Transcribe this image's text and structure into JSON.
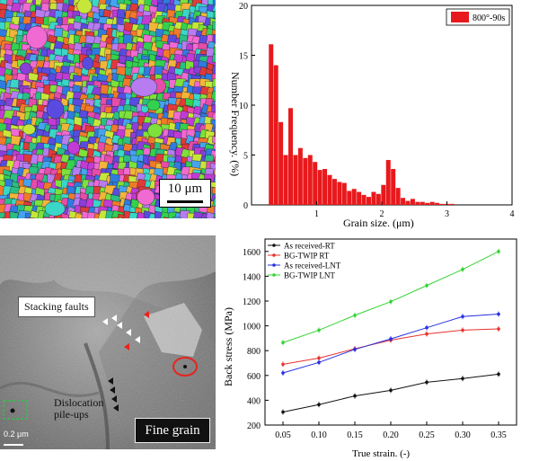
{
  "ebsd_map": {
    "scale_label": "10 μm",
    "palette": [
      "#2f7be0",
      "#8a3fd8",
      "#c23bd4",
      "#e64ca8",
      "#33d14f",
      "#7ee03b",
      "#c7e63a",
      "#f2b53a",
      "#f07a2a",
      "#e03a3a",
      "#3ad6c8",
      "#46a3f0",
      "#b67cf0",
      "#f06ad2",
      "#5a4be0",
      "#2bbf83"
    ]
  },
  "histogram": {
    "chart_data": {
      "type": "bar",
      "title": "",
      "legend": "800°-90s",
      "xlabel": "Grain size. (μm)",
      "ylabel": "Number Frequency. (%)",
      "xlim": [
        0,
        4
      ],
      "ylim": [
        0,
        20
      ],
      "xticks": [
        "1",
        "2",
        "3",
        "4"
      ],
      "yticks": [
        "0",
        "5",
        "10",
        "15",
        "20"
      ],
      "bin_width": 0.075,
      "bins": [
        {
          "x": 0.3,
          "value": 16.1
        },
        {
          "x": 0.375,
          "value": 14.0
        },
        {
          "x": 0.45,
          "value": 8.3
        },
        {
          "x": 0.525,
          "value": 5.0
        },
        {
          "x": 0.6,
          "value": 9.7
        },
        {
          "x": 0.675,
          "value": 5.0
        },
        {
          "x": 0.75,
          "value": 5.7
        },
        {
          "x": 0.825,
          "value": 4.7
        },
        {
          "x": 0.9,
          "value": 5.0
        },
        {
          "x": 0.975,
          "value": 4.3
        },
        {
          "x": 1.05,
          "value": 3.5
        },
        {
          "x": 1.125,
          "value": 3.6
        },
        {
          "x": 1.2,
          "value": 3.0
        },
        {
          "x": 1.275,
          "value": 2.6
        },
        {
          "x": 1.35,
          "value": 2.3
        },
        {
          "x": 1.425,
          "value": 2.2
        },
        {
          "x": 1.5,
          "value": 1.4
        },
        {
          "x": 1.575,
          "value": 1.6
        },
        {
          "x": 1.65,
          "value": 1.3
        },
        {
          "x": 1.725,
          "value": 1.0
        },
        {
          "x": 1.8,
          "value": 0.8
        },
        {
          "x": 1.875,
          "value": 1.3
        },
        {
          "x": 1.95,
          "value": 1.1
        },
        {
          "x": 2.025,
          "value": 2.0
        },
        {
          "x": 2.1,
          "value": 4.5
        },
        {
          "x": 2.175,
          "value": 3.6
        },
        {
          "x": 2.25,
          "value": 1.7
        },
        {
          "x": 2.325,
          "value": 0.7
        },
        {
          "x": 2.4,
          "value": 0.4
        },
        {
          "x": 2.475,
          "value": 0.6
        },
        {
          "x": 2.55,
          "value": 0.3
        },
        {
          "x": 2.625,
          "value": 0.3
        },
        {
          "x": 2.7,
          "value": 0.2
        },
        {
          "x": 2.775,
          "value": 0.3
        },
        {
          "x": 2.85,
          "value": 0.2
        },
        {
          "x": 2.925,
          "value": 0.1
        },
        {
          "x": 3.0,
          "value": 0.1
        },
        {
          "x": 3.075,
          "value": 0.1
        }
      ]
    },
    "color": "#e8191c"
  },
  "tem_image": {
    "stacking_faults_label": "Stacking faults",
    "dislocation_label": "Dislocation\npile-ups",
    "fine_grain_label": "Fine grain",
    "scale_label": "0.2 μm"
  },
  "back_stress": {
    "chart_data": {
      "type": "line",
      "xlabel": "True strain. (-)",
      "ylabel": "Back stress  (MPa)",
      "x": [
        0.05,
        0.1,
        0.15,
        0.2,
        0.25,
        0.3,
        0.35
      ],
      "xlim": [
        0.025,
        0.375
      ],
      "ylim": [
        200,
        1700
      ],
      "xticks": [
        "0.05",
        "0.10",
        "0.15",
        "0.20",
        "0.25",
        "0.30",
        "0.35"
      ],
      "yticks": [
        "200",
        "400",
        "600",
        "800",
        "1000",
        "1200",
        "1400",
        "1600"
      ],
      "series": [
        {
          "name": "As received-RT",
          "color": "#111111",
          "values": [
            305,
            365,
            435,
            480,
            545,
            575,
            610
          ]
        },
        {
          "name": "BG-TWIP RT",
          "color": "#e8312e",
          "values": [
            690,
            740,
            815,
            885,
            935,
            965,
            975
          ]
        },
        {
          "name": "As received-LNT",
          "color": "#2430e0",
          "values": [
            620,
            705,
            810,
            895,
            985,
            1075,
            1095
          ]
        },
        {
          "name": "BG-TWIP LNT",
          "color": "#33d333",
          "values": [
            865,
            965,
            1085,
            1195,
            1325,
            1455,
            1600
          ]
        }
      ]
    }
  }
}
